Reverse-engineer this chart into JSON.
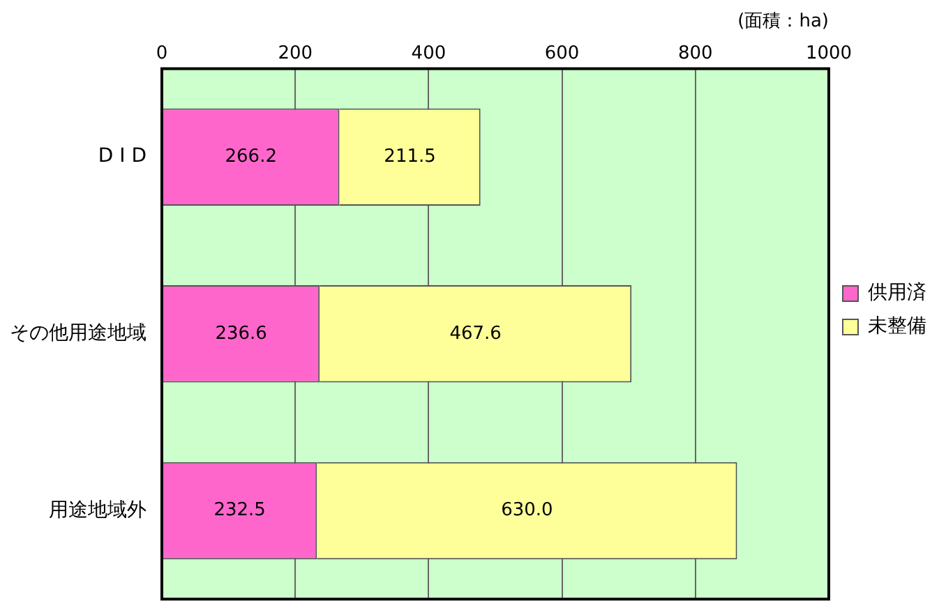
{
  "chart_data": {
    "type": "bar",
    "orientation": "horizontal",
    "stacked": true,
    "xlabel": "(面積：ha)",
    "categories": [
      "D I D",
      "その他用途地域",
      "用途地域外"
    ],
    "series": [
      {
        "name": "供用済",
        "color": "#ff66cc",
        "values": [
          266.2,
          236.6,
          232.5
        ],
        "value_labels": [
          "266.2",
          "236.6",
          "232.5"
        ]
      },
      {
        "name": "未整備",
        "color": "#ffff99",
        "values": [
          211.5,
          467.6,
          630.0
        ],
        "value_labels": [
          "211.5",
          "467.6",
          "630.0"
        ]
      }
    ],
    "xlim": [
      0,
      1000
    ],
    "xticks": [
      0,
      200,
      400,
      600,
      800,
      1000
    ],
    "grid": "x",
    "legend": "right"
  }
}
